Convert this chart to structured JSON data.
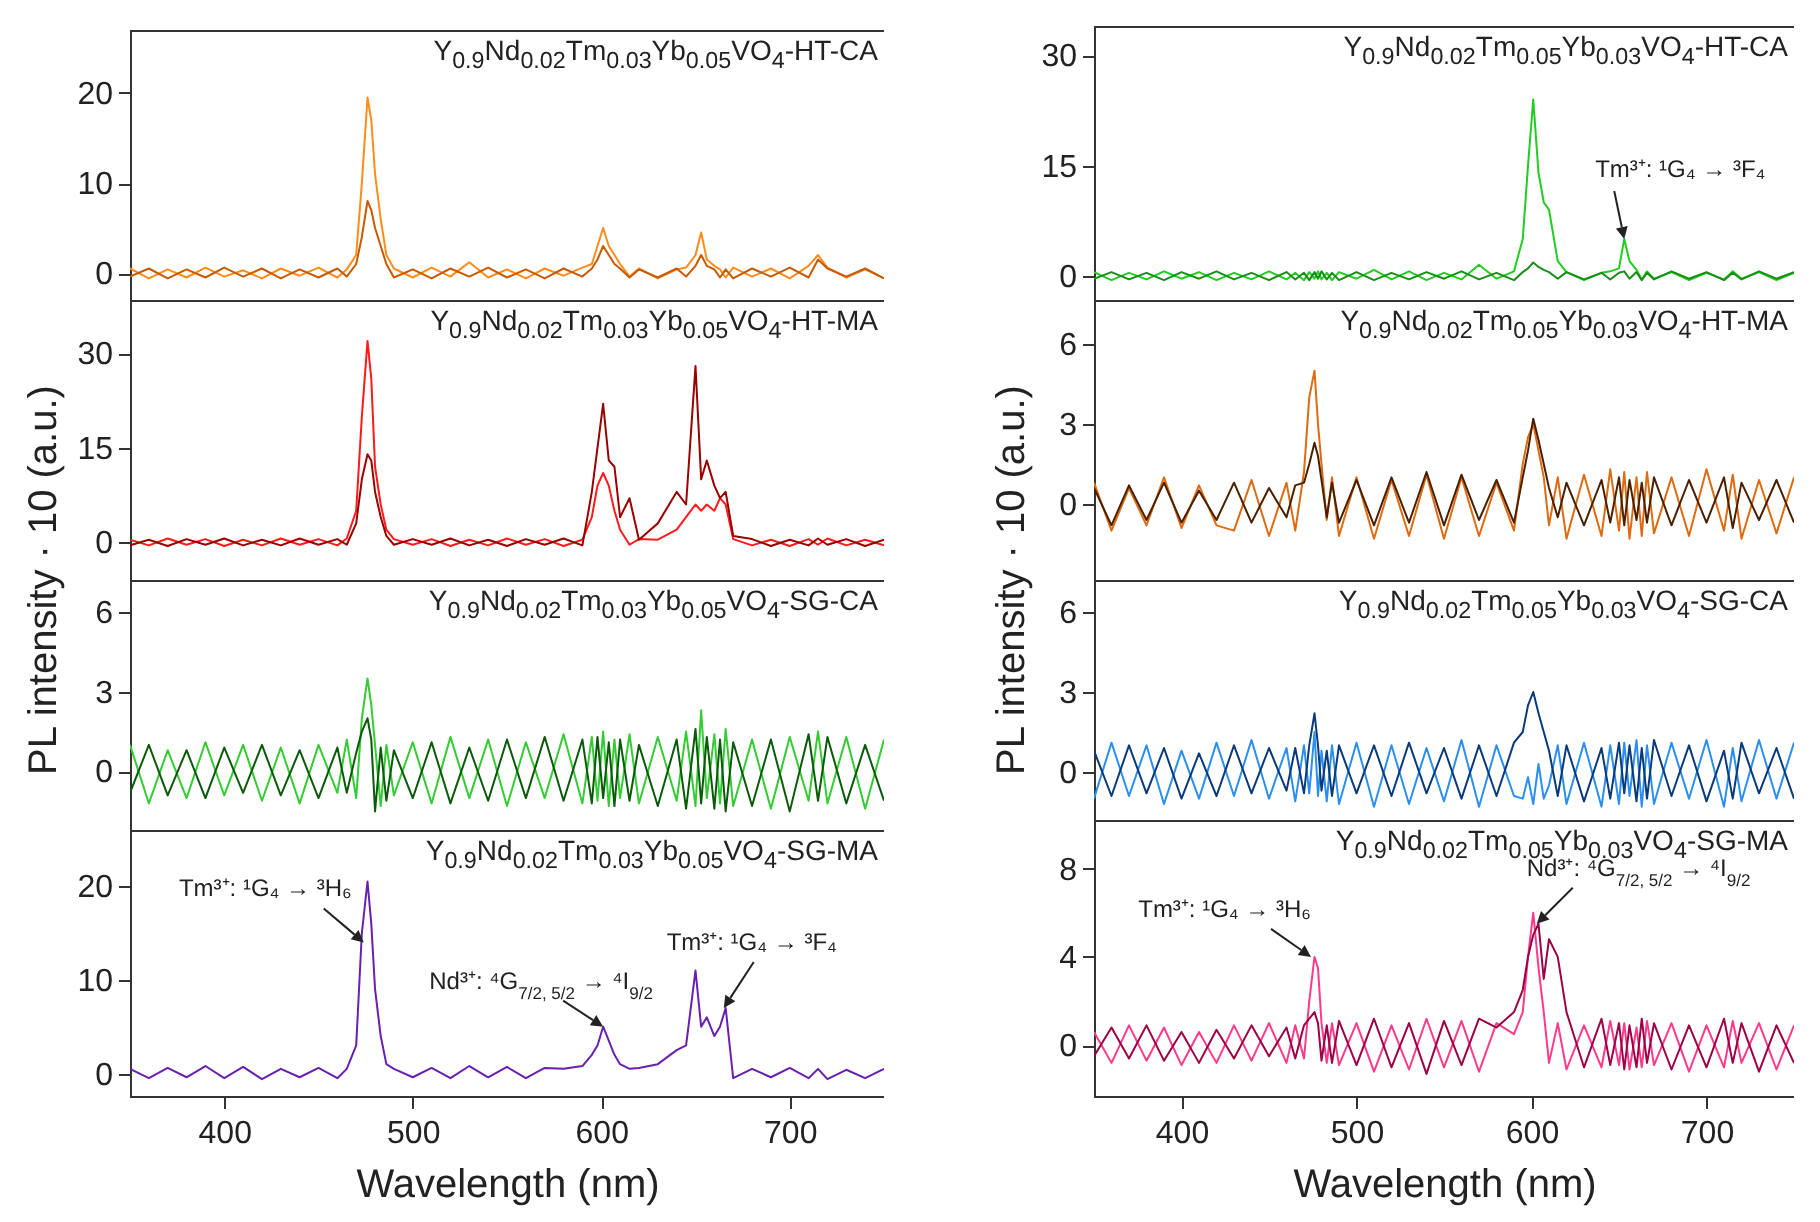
{
  "chart_data": [
    {
      "type": "line",
      "xlim": [
        350,
        750
      ],
      "ylim": [
        -3,
        27
      ],
      "yticks": [
        0,
        10,
        20
      ],
      "tick_labels": "y",
      "ylabel": "PL intensity · 10 (a.u.)",
      "annotations": [
        "Y$_{0.9}$Nd$_{0.02}$Tm$_{0.03}$Yb$_{0.05}$VO$_{4}$-HT-CA"
      ],
      "x": [
        350,
        360,
        370,
        380,
        390,
        400,
        410,
        420,
        430,
        440,
        450,
        460,
        465,
        470,
        473,
        476,
        478,
        480,
        483,
        486,
        490,
        500,
        510,
        520,
        530,
        540,
        550,
        560,
        570,
        580,
        590,
        595,
        598,
        601,
        604,
        607,
        610,
        615,
        620,
        630,
        640,
        645,
        650,
        653,
        656,
        660,
        663,
        666,
        670,
        680,
        690,
        700,
        710,
        715,
        720,
        730,
        740,
        750
      ],
      "series": [
        {
          "color": "#ff8c1a",
          "values": [
            0.5,
            -0.6,
            0.4,
            -0.5,
            0.6,
            -0.4,
            0.3,
            -0.6,
            0.5,
            -0.3,
            0.6,
            -0.5,
            0.4,
            2,
            10,
            19.5,
            17,
            11,
            6,
            2,
            0.5,
            -0.5,
            0.6,
            -0.4,
            1.2,
            -0.5,
            0.4,
            -0.6,
            0.5,
            -0.3,
            0.6,
            1,
            3,
            5,
            3,
            2,
            1,
            -0.4,
            0.5,
            -0.6,
            0.4,
            0.6,
            2,
            4.5,
            1.5,
            0.8,
            0.4,
            -0.5,
            0.6,
            -0.4,
            0.5,
            -0.6,
            0.8,
            2,
            0.6,
            -0.5,
            0.4,
            -0.6
          ]
        },
        {
          "color": "#c85a00",
          "values": [
            -0.4,
            0.5,
            -0.6,
            0.4,
            -0.5,
            0.6,
            -0.4,
            0.5,
            -0.6,
            0.4,
            -0.5,
            0.5,
            -0.4,
            1,
            4,
            8,
            7,
            5,
            3,
            1,
            -0.5,
            0.4,
            -0.6,
            0.5,
            -0.4,
            0.6,
            -0.5,
            0.4,
            -0.6,
            0.5,
            -0.4,
            0.5,
            1.5,
            3,
            2,
            1,
            0.5,
            -0.5,
            0.4,
            -0.5,
            0.5,
            -0.4,
            0.8,
            2,
            0.8,
            0.4,
            -0.5,
            0.4,
            -0.6,
            0.5,
            -0.4,
            0.6,
            -0.5,
            1.5,
            0.5,
            -0.4,
            0.5,
            -0.6
          ]
        }
      ]
    },
    {
      "type": "line",
      "xlim": [
        350,
        750
      ],
      "ylim": [
        -6,
        38.5
      ],
      "yticks": [
        0,
        15,
        30
      ],
      "tick_labels": "y",
      "annotations": [
        "Y$_{0.9}$Nd$_{0.02}$Tm$_{0.03}$Yb$_{0.05}$VO$_{4}$-HT-MA"
      ],
      "x": [
        350,
        360,
        370,
        380,
        390,
        400,
        410,
        420,
        430,
        440,
        450,
        460,
        465,
        470,
        473,
        476,
        478,
        480,
        483,
        486,
        490,
        500,
        510,
        520,
        530,
        540,
        550,
        560,
        570,
        580,
        590,
        595,
        598,
        601,
        604,
        607,
        610,
        615,
        620,
        630,
        640,
        645,
        650,
        653,
        656,
        660,
        663,
        666,
        670,
        680,
        690,
        700,
        710,
        715,
        720,
        730,
        740,
        750
      ],
      "series": [
        {
          "color": "#ff1a1a",
          "values": [
            0.4,
            -0.5,
            0.6,
            -0.4,
            0.5,
            -0.6,
            0.4,
            -0.5,
            0.6,
            -0.4,
            0.5,
            -0.5,
            0.6,
            5,
            20,
            32,
            26,
            12,
            6,
            2,
            0.5,
            -0.4,
            0.5,
            -0.6,
            0.4,
            -0.5,
            0.6,
            -0.4,
            0.5,
            -0.6,
            0.4,
            4,
            9,
            11,
            9,
            5,
            2,
            -0.4,
            0.5,
            0.4,
            2,
            4,
            6,
            5,
            6,
            5,
            7,
            6,
            0.5,
            -0.5,
            0.4,
            -0.6,
            0.5,
            -0.4,
            0.6,
            -0.5,
            0.4,
            -0.5
          ]
        },
        {
          "color": "#9b0000",
          "values": [
            -0.5,
            0.4,
            -0.6,
            0.5,
            -0.4,
            0.6,
            -0.5,
            0.4,
            -0.5,
            0.6,
            -0.4,
            0.5,
            -0.4,
            3,
            10,
            14,
            13,
            8,
            4,
            1,
            -0.4,
            0.5,
            -0.4,
            0.6,
            -0.5,
            0.4,
            -0.6,
            0.5,
            -0.4,
            0.6,
            -0.5,
            8,
            15,
            22,
            13,
            12,
            4,
            7,
            0.4,
            3,
            8,
            6,
            28,
            10,
            13,
            9,
            7,
            8,
            1,
            0.5,
            -0.6,
            0.4,
            -0.5,
            0.6,
            -0.4,
            0.5,
            -0.6,
            0.4
          ]
        }
      ]
    },
    {
      "type": "line",
      "xlim": [
        350,
        750
      ],
      "ylim": [
        -2.2,
        7.2
      ],
      "yticks": [
        0,
        3,
        6
      ],
      "tick_labels": "y",
      "annotations": [
        "Y$_{0.9}$Nd$_{0.02}$Tm$_{0.03}$Yb$_{0.05}$VO$_{4}$-SG-CA"
      ],
      "x": [
        350,
        360,
        370,
        380,
        390,
        400,
        410,
        420,
        430,
        440,
        450,
        460,
        465,
        470,
        473,
        476,
        478,
        480,
        483,
        486,
        490,
        500,
        510,
        520,
        530,
        540,
        550,
        560,
        570,
        580,
        590,
        595,
        598,
        601,
        604,
        607,
        610,
        615,
        620,
        630,
        640,
        645,
        650,
        653,
        656,
        660,
        663,
        666,
        670,
        680,
        690,
        700,
        710,
        715,
        720,
        730,
        740,
        750
      ],
      "series": [
        {
          "color": "#33cc33",
          "values": [
            1,
            -1.2,
            0.8,
            -1,
            1.1,
            -0.9,
            1,
            -1.1,
            0.9,
            -1.2,
            1,
            -0.8,
            1.2,
            -1,
            2,
            3.5,
            2.5,
            1,
            -1.3,
            1,
            -0.9,
            1.1,
            -1.2,
            1.3,
            -1,
            1.2,
            -1.3,
            1.1,
            -1,
            1.4,
            -1.2,
            1.3,
            -1.1,
            1.5,
            -1.3,
            1.2,
            -1,
            1.4,
            -1.2,
            1.3,
            -1.1,
            1.5,
            -1.3,
            2.3,
            -1,
            1.4,
            -1.2,
            1.6,
            -1.3,
            1.2,
            -1.4,
            1.3,
            -1.1,
            1.5,
            -1.2,
            1.3,
            -1.4,
            1.2
          ]
        },
        {
          "color": "#0a5a0a",
          "values": [
            -0.8,
            1,
            -0.9,
            0.8,
            -1,
            0.9,
            -0.8,
            1,
            -0.9,
            0.8,
            -1,
            0.9,
            -0.8,
            0.7,
            1.5,
            2,
            1.2,
            -1.5,
            0.9,
            -1.1,
            0.8,
            -1,
            1.1,
            -1.2,
            0.9,
            -1.1,
            1.2,
            -1,
            1.3,
            -1.1,
            1.2,
            -1.2,
            1.3,
            -1,
            1.1,
            -1.3,
            1.2,
            -1.1,
            1,
            -1.3,
            1.2,
            -1.4,
            1.6,
            -1.2,
            1.3,
            -1.4,
            1.2,
            -1.5,
            1.1,
            -1.3,
            1.2,
            -1.5,
            1.4,
            -1.1,
            1.3,
            -1.2,
            1,
            -1.1
          ]
        }
      ]
    },
    {
      "type": "line",
      "xlim": [
        350,
        750
      ],
      "ylim": [
        -2.4,
        26
      ],
      "xticks": [
        400,
        500,
        600,
        700
      ],
      "yticks": [
        0,
        10,
        20
      ],
      "xlabel": "Wavelength (nm)",
      "annotations": [
        "Y$_{0.9}$Nd$_{0.02}$Tm$_{0.03}$Yb$_{0.05}$VO$_{4}$-SG-MA",
        {
          "text": "Tm³⁺: ¹G₄ → ³H₆",
          "x": 474,
          "y": 14
        },
        {
          "text": "Nd³⁺: ⁴G$_{7/2, 5/2}$ → ⁴I$_{9/2}$",
          "x": 601,
          "y": 5
        },
        {
          "text": "Tm³⁺: ¹G₄ → ³F₄",
          "x": 665,
          "y": 7
        }
      ],
      "x": [
        350,
        360,
        370,
        380,
        390,
        400,
        410,
        420,
        430,
        440,
        450,
        460,
        465,
        470,
        473,
        476,
        478,
        480,
        483,
        486,
        490,
        500,
        510,
        520,
        530,
        540,
        550,
        560,
        570,
        580,
        590,
        595,
        598,
        601,
        604,
        607,
        610,
        615,
        620,
        630,
        640,
        645,
        650,
        653,
        656,
        660,
        663,
        666,
        670,
        680,
        690,
        700,
        710,
        715,
        720,
        730,
        740,
        750
      ],
      "series": [
        {
          "color": "#6a1fb0",
          "values": [
            0.5,
            -0.5,
            0.6,
            -0.4,
            0.8,
            -0.5,
            0.7,
            -0.6,
            0.5,
            -0.4,
            0.6,
            -0.5,
            0.5,
            3,
            15,
            20.5,
            16,
            9,
            4,
            1,
            0.5,
            -0.4,
            0.6,
            -0.5,
            0.8,
            -0.4,
            0.7,
            -0.5,
            0.6,
            0.5,
            0.8,
            2,
            3,
            5,
            3.5,
            2,
            1,
            0.5,
            0.6,
            1,
            2.5,
            3,
            11,
            5,
            6,
            4,
            5,
            7,
            -0.5,
            0.5,
            -0.4,
            0.6,
            -0.5,
            0.5,
            -0.6,
            0.4,
            -0.5,
            0.5
          ]
        }
      ]
    },
    {
      "type": "line",
      "xlim": [
        350,
        750
      ],
      "ylim": [
        -3.3,
        34
      ],
      "yticks": [
        0,
        15,
        30
      ],
      "tick_labels": "y",
      "ylabel": "PL intensity · 10 (a.u.)",
      "annotations": [
        "Y$_{0.9}$Nd$_{0.02}$Tm$_{0.05}$Yb$_{0.03}$VO$_{4}$-HT-CA",
        {
          "text": "Tm³⁺: ¹G₄ → ³F₄",
          "x": 653,
          "y": 5
        }
      ],
      "x": [
        350,
        360,
        370,
        380,
        390,
        400,
        410,
        420,
        430,
        440,
        450,
        460,
        465,
        470,
        473,
        476,
        478,
        480,
        483,
        486,
        490,
        500,
        510,
        520,
        530,
        540,
        550,
        560,
        570,
        580,
        590,
        595,
        598,
        601,
        604,
        607,
        610,
        615,
        620,
        630,
        640,
        645,
        650,
        653,
        656,
        660,
        663,
        666,
        670,
        680,
        690,
        700,
        710,
        715,
        720,
        730,
        740,
        750
      ],
      "series": [
        {
          "color": "#22cc22",
          "values": [
            0.5,
            -0.6,
            0.4,
            -0.5,
            0.6,
            -0.4,
            0.5,
            -0.6,
            0.4,
            -0.5,
            0.6,
            -0.5,
            0.4,
            -0.6,
            0.5,
            -0.4,
            0.6,
            -0.5,
            0.4,
            -0.6,
            0.5,
            -0.4,
            0.8,
            -0.5,
            0.6,
            -0.6,
            0.4,
            -0.5,
            1.5,
            -0.4,
            0.6,
            5,
            15,
            24,
            14,
            10,
            9,
            2,
            0.5,
            -0.6,
            0.4,
            0.6,
            1,
            5,
            2,
            0.8,
            -0.5,
            0.6,
            -0.4,
            0.5,
            -0.6,
            0.4,
            -0.5,
            0.6,
            -0.4,
            0.5,
            -0.6,
            0.4
          ]
        },
        {
          "color": "#178f17",
          "values": [
            -0.4,
            0.5,
            -0.5,
            0.4,
            -0.6,
            0.5,
            -0.4,
            0.6,
            -0.5,
            0.4,
            -0.6,
            0.5,
            -0.5,
            0.4,
            -0.6,
            0.5,
            -0.4,
            0.6,
            -0.5,
            0.4,
            -0.6,
            0.5,
            -0.6,
            0.4,
            -0.5,
            0.5,
            -0.4,
            0.6,
            -0.5,
            0.4,
            -0.6,
            0.5,
            1,
            1.8,
            1.2,
            0.8,
            0.5,
            -0.4,
            0.5,
            -0.5,
            0.4,
            -0.5,
            0.4,
            0.6,
            -0.4,
            0.5,
            -0.6,
            0.4,
            -0.5,
            0.6,
            -0.4,
            0.5,
            -0.6,
            0.4,
            -0.5,
            0.6,
            -0.4,
            0.5
          ]
        }
      ]
    },
    {
      "type": "line",
      "xlim": [
        350,
        750
      ],
      "ylim": [
        -2.85,
        7.65
      ],
      "yticks": [
        0,
        3,
        6
      ],
      "tick_labels": "y",
      "annotations": [
        "Y$_{0.9}$Nd$_{0.02}$Tm$_{0.05}$Yb$_{0.03}$VO$_{4}$-HT-MA"
      ],
      "x": [
        350,
        360,
        370,
        380,
        390,
        400,
        410,
        420,
        430,
        440,
        450,
        460,
        465,
        470,
        473,
        476,
        478,
        480,
        483,
        486,
        490,
        500,
        510,
        520,
        530,
        540,
        550,
        560,
        570,
        580,
        590,
        595,
        598,
        601,
        604,
        607,
        610,
        615,
        620,
        630,
        640,
        645,
        650,
        653,
        656,
        660,
        663,
        666,
        670,
        680,
        690,
        700,
        710,
        715,
        720,
        730,
        740,
        750
      ],
      "series": [
        {
          "color": "#e06a10",
          "values": [
            0.8,
            -1,
            0.6,
            -0.8,
            1,
            -0.9,
            0.7,
            -0.8,
            -1,
            0.9,
            -1.2,
            0.8,
            -1,
            1.2,
            4,
            5,
            3,
            1.5,
            -0.6,
            1,
            -1.2,
            1,
            -1.3,
            0.9,
            -1.2,
            1.1,
            -1.3,
            1,
            -1.2,
            0.8,
            -1,
            1.5,
            2.5,
            3,
            2,
            1,
            -0.8,
            1,
            -1.3,
            1.1,
            -1.2,
            1.3,
            -1,
            1.2,
            -1.3,
            1,
            -1.2,
            1.2,
            -1.1,
            1,
            -1.2,
            1.3,
            -1,
            1.1,
            -1.3,
            0.9,
            -1.1,
            1
          ]
        },
        {
          "color": "#4a2000",
          "values": [
            0.6,
            -0.8,
            0.7,
            -0.6,
            0.8,
            -0.7,
            0.5,
            -0.6,
            0.8,
            -0.7,
            0.6,
            -0.5,
            0.7,
            0.8,
            1.5,
            2.3,
            1.8,
            0.9,
            -0.5,
            0.8,
            -0.7,
            0.9,
            -0.8,
            1,
            -0.7,
            1.2,
            -0.8,
            1.1,
            -0.6,
            0.9,
            -0.7,
            1,
            2,
            3.2,
            2.4,
            1.5,
            0.6,
            -0.5,
            0.8,
            -0.8,
            0.9,
            -0.7,
            1,
            -0.8,
            0.9,
            -0.6,
            0.8,
            -0.7,
            1,
            -0.8,
            0.9,
            -0.7,
            1,
            -0.9,
            0.8,
            -0.6,
            0.9,
            -0.7
          ]
        }
      ]
    },
    {
      "type": "line",
      "xlim": [
        350,
        750
      ],
      "ylim": [
        -1.8,
        7.2
      ],
      "yticks": [
        0,
        3,
        6
      ],
      "tick_labels": "y",
      "annotations": [
        "Y$_{0.9}$Nd$_{0.02}$Tm$_{0.05}$Yb$_{0.03}$VO$_{4}$-SG-CA"
      ],
      "x": [
        350,
        360,
        370,
        380,
        390,
        400,
        410,
        420,
        430,
        440,
        450,
        460,
        465,
        470,
        473,
        476,
        478,
        480,
        483,
        486,
        490,
        500,
        510,
        520,
        530,
        540,
        550,
        560,
        570,
        580,
        590,
        595,
        598,
        601,
        604,
        607,
        610,
        615,
        620,
        630,
        640,
        645,
        650,
        653,
        656,
        660,
        663,
        666,
        670,
        680,
        690,
        700,
        710,
        715,
        720,
        730,
        740,
        750
      ],
      "series": [
        {
          "color": "#2a8ff0",
          "values": [
            -1,
            1.1,
            -0.9,
            1,
            -1.2,
            0.8,
            -1,
            1.1,
            -0.9,
            1.2,
            -1,
            0.9,
            -1.1,
            1,
            -0.8,
            1.5,
            -0.9,
            0.8,
            -1.1,
            1,
            -1.2,
            1.1,
            -1.3,
            1,
            -1.2,
            0.9,
            -1.1,
            1.2,
            -1.3,
            1,
            -0.9,
            -1,
            -0.2,
            -1.2,
            0.3,
            -1,
            -0.5,
            1,
            -1.2,
            1.1,
            -1.3,
            1,
            -1.2,
            1.1,
            -0.9,
            1.2,
            -1.3,
            1,
            -1.2,
            1.1,
            -1,
            1.2,
            -1.3,
            0.9,
            -1.1,
            1.2,
            -1,
            1.1
          ]
        },
        {
          "color": "#0a3a7a",
          "values": [
            0.8,
            -0.9,
            1,
            -0.8,
            0.9,
            -1,
            0.7,
            -0.9,
            1,
            -0.8,
            0.9,
            -0.7,
            0.9,
            -0.8,
            1,
            2.2,
            1,
            -0.7,
            0.8,
            -0.9,
            1,
            -0.8,
            1,
            -0.9,
            1.1,
            -0.8,
            0.9,
            -1,
            1,
            -0.9,
            1.1,
            1.5,
            2.5,
            3,
            2.2,
            1.5,
            0.8,
            -0.9,
            1,
            -1.1,
            0.9,
            -1,
            1.1,
            -0.8,
            1,
            -1.1,
            0.9,
            -1,
            1.2,
            -0.9,
            1,
            -1.1,
            0.8,
            -1,
            1.1,
            -0.8,
            0.9,
            -1
          ]
        }
      ]
    },
    {
      "type": "line",
      "xlim": [
        350,
        750
      ],
      "ylim": [
        -2.3,
        10.2
      ],
      "xticks": [
        400,
        500,
        600,
        700
      ],
      "yticks": [
        0,
        4,
        8
      ],
      "xlabel": "Wavelength (nm)",
      "annotations": [
        "Y$_{0.9}$Nd$_{0.02}$Tm$_{0.05}$Yb$_{0.03}$VO$_{4}$-SG-MA",
        {
          "text": "Tm³⁺: ¹G₄ → ³H₆",
          "x": 474,
          "y": 4
        },
        {
          "text": "Nd³⁺: ⁴G$_{7/2, 5/2}$ → ⁴I$_{9/2}$",
          "x": 603,
          "y": 5.5
        }
      ],
      "x": [
        350,
        360,
        370,
        380,
        390,
        400,
        410,
        420,
        430,
        440,
        450,
        460,
        465,
        470,
        473,
        476,
        478,
        480,
        483,
        486,
        490,
        500,
        510,
        520,
        530,
        540,
        550,
        560,
        570,
        580,
        590,
        595,
        598,
        601,
        604,
        607,
        610,
        615,
        620,
        630,
        640,
        645,
        650,
        653,
        656,
        660,
        663,
        666,
        670,
        680,
        690,
        700,
        710,
        715,
        720,
        730,
        740,
        750
      ],
      "series": [
        {
          "color": "#ff3a8a",
          "values": [
            0.6,
            -0.8,
            0.9,
            -0.7,
            0.8,
            -0.9,
            0.6,
            -0.8,
            0.9,
            -0.7,
            1,
            -0.8,
            0.9,
            -0.6,
            2,
            4,
            3.5,
            1,
            -0.8,
            1,
            -0.9,
            1,
            -1.2,
            0.9,
            -1.1,
            1.2,
            -1,
            1.1,
            -1.2,
            1,
            0.5,
            1.5,
            4,
            6,
            3.5,
            1.5,
            -0.8,
            1,
            -1.1,
            0.9,
            -1,
            1.1,
            -0.9,
            1,
            -1.1,
            0.8,
            -1,
            1.1,
            -0.9,
            1,
            -1.2,
            0.9,
            -1,
            1.1,
            -0.8,
            1,
            -1.1,
            0.9
          ]
        },
        {
          "color": "#9c0045",
          "values": [
            -0.5,
            0.8,
            -0.6,
            0.9,
            -0.7,
            0.6,
            -0.8,
            0.7,
            -0.6,
            0.9,
            -0.5,
            0.8,
            -0.6,
            0.9,
            1.2,
            1.5,
            1,
            -0.7,
            0.9,
            -0.8,
            1.1,
            -0.9,
            1.2,
            -1,
            1,
            -1.3,
            1.1,
            -0.9,
            1.2,
            0.8,
            1.5,
            2.5,
            4,
            5,
            5.5,
            3,
            4.8,
            4,
            1.5,
            -1,
            1.2,
            -0.9,
            1,
            -1.1,
            0.9,
            -1,
            1.2,
            -0.8,
            1,
            -1.1,
            0.9,
            -1,
            1.2,
            -0.8,
            1,
            -1.2,
            0.9,
            -0.8
          ]
        }
      ]
    }
  ]
}
